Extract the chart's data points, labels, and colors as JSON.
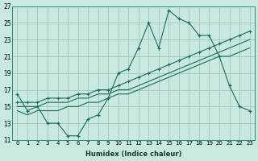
{
  "xlabel": "Humidex (Indice chaleur)",
  "bg_color": "#c8e8e0",
  "grid_color": "#9fc8bf",
  "line_color": "#1a6b5a",
  "xlim": [
    -0.5,
    23.5
  ],
  "ylim": [
    11,
    27
  ],
  "xticks": [
    0,
    1,
    2,
    3,
    4,
    5,
    6,
    7,
    8,
    9,
    10,
    11,
    12,
    13,
    14,
    15,
    16,
    17,
    18,
    19,
    20,
    21,
    22,
    23
  ],
  "yticks": [
    11,
    13,
    15,
    17,
    19,
    21,
    23,
    25,
    27
  ],
  "line1_x": [
    0,
    1,
    2,
    3,
    4,
    5,
    6,
    7,
    8,
    9,
    10,
    11,
    12,
    13,
    14,
    15,
    16,
    17,
    18,
    19,
    20,
    21,
    22,
    23
  ],
  "line1_y": [
    16.5,
    14.5,
    15,
    13,
    13,
    11.5,
    11.5,
    13.5,
    14,
    16.0,
    19.0,
    19.5,
    22.0,
    25.0,
    22.0,
    26.5,
    25.5,
    25.0,
    23.5,
    23.5,
    21.0,
    17.5,
    15.0,
    14.5
  ],
  "line2_x": [
    0,
    1,
    2,
    3,
    4,
    5,
    6,
    7,
    8,
    9,
    10,
    11,
    12,
    13,
    14,
    15,
    16,
    17,
    18,
    19,
    20,
    21,
    22,
    23
  ],
  "line2_y": [
    15.5,
    15.5,
    15.5,
    16.0,
    16.0,
    16.0,
    16.5,
    16.5,
    17.0,
    17.0,
    17.5,
    18.0,
    18.5,
    19.0,
    19.5,
    20.0,
    20.5,
    21.0,
    21.5,
    22.0,
    22.5,
    23.0,
    23.5,
    24.0
  ],
  "line3_x": [
    0,
    1,
    2,
    3,
    4,
    5,
    6,
    7,
    8,
    9,
    10,
    11,
    12,
    13,
    14,
    15,
    16,
    17,
    18,
    19,
    20,
    21,
    22,
    23
  ],
  "line3_y": [
    15.0,
    15.0,
    15.0,
    15.5,
    15.5,
    15.5,
    16.0,
    16.0,
    16.5,
    16.5,
    17.0,
    17.0,
    17.5,
    18.0,
    18.5,
    19.0,
    19.5,
    20.0,
    20.5,
    21.0,
    21.5,
    22.0,
    22.5,
    23.0
  ],
  "line4_x": [
    0,
    1,
    2,
    3,
    4,
    5,
    6,
    7,
    8,
    9,
    10,
    11,
    12,
    13,
    14,
    15,
    16,
    17,
    18,
    19,
    20,
    21,
    22,
    23
  ],
  "line4_y": [
    14.5,
    14.0,
    14.5,
    14.5,
    14.5,
    15.0,
    15.0,
    15.5,
    15.5,
    16.0,
    16.5,
    16.5,
    17.0,
    17.5,
    18.0,
    18.5,
    19.0,
    19.5,
    20.0,
    20.5,
    21.0,
    21.0,
    21.5,
    22.0
  ]
}
